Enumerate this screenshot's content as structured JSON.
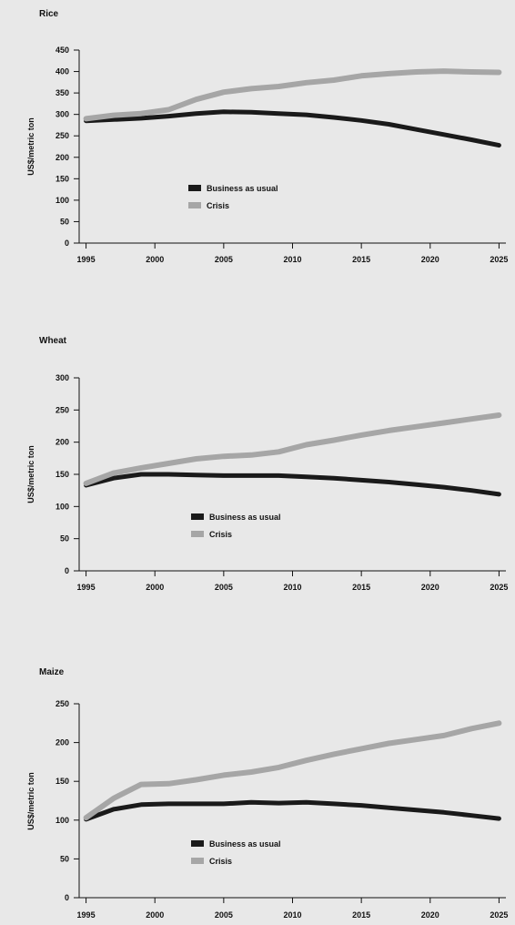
{
  "colors": {
    "background": "#e8e8e8",
    "business_as_usual": "#1a1a1a",
    "crisis": "#a6a6a6"
  },
  "chart_data": [
    {
      "type": "line",
      "title": "Rice",
      "ylabel": "US$/metric ton",
      "xlabel": "",
      "xlim": [
        1994.5,
        2025.5
      ],
      "ylim": [
        0,
        450
      ],
      "yticks": [
        0,
        50,
        100,
        150,
        200,
        250,
        300,
        350,
        400,
        450
      ],
      "xticks": [
        1995,
        2000,
        2005,
        2010,
        2015,
        2020,
        2025
      ],
      "legend_position": "lower-center",
      "x": [
        1995,
        1997,
        1999,
        2001,
        2003,
        2005,
        2007,
        2009,
        2011,
        2013,
        2015,
        2017,
        2019,
        2021,
        2023,
        2025
      ],
      "series": [
        {
          "name": "Business as usual",
          "values": [
            285,
            288,
            291,
            296,
            302,
            306,
            305,
            302,
            299,
            293,
            286,
            277,
            265,
            253,
            241,
            228
          ]
        },
        {
          "name": "Crisis",
          "values": [
            290,
            298,
            302,
            311,
            335,
            352,
            360,
            365,
            374,
            380,
            390,
            395,
            399,
            401,
            399,
            398
          ]
        }
      ]
    },
    {
      "type": "line",
      "title": "Wheat",
      "ylabel": "US$/metric ton",
      "xlabel": "",
      "xlim": [
        1994.5,
        2025.5
      ],
      "ylim": [
        0,
        300
      ],
      "yticks": [
        0,
        50,
        100,
        150,
        200,
        250,
        300
      ],
      "xticks": [
        1995,
        2000,
        2005,
        2010,
        2015,
        2020,
        2025
      ],
      "legend_position": "lower-center",
      "x": [
        1995,
        1997,
        1999,
        2001,
        2003,
        2005,
        2007,
        2009,
        2011,
        2013,
        2015,
        2017,
        2019,
        2021,
        2023,
        2025
      ],
      "series": [
        {
          "name": "Business as usual",
          "values": [
            133,
            144,
            150,
            150,
            149,
            148,
            148,
            148,
            146,
            144,
            141,
            138,
            134,
            130,
            125,
            119
          ]
        },
        {
          "name": "Crisis",
          "values": [
            136,
            152,
            160,
            167,
            174,
            178,
            180,
            185,
            196,
            203,
            211,
            218,
            224,
            230,
            236,
            242
          ]
        }
      ]
    },
    {
      "type": "line",
      "title": "Maize",
      "ylabel": "US$/metric ton",
      "xlabel": "",
      "xlim": [
        1994.5,
        2025.5
      ],
      "ylim": [
        0,
        250
      ],
      "yticks": [
        0,
        50,
        100,
        150,
        200,
        250
      ],
      "xticks": [
        1995,
        2000,
        2005,
        2010,
        2015,
        2020,
        2025
      ],
      "legend_position": "lower-center",
      "x": [
        1995,
        1997,
        1999,
        2001,
        2003,
        2005,
        2007,
        2009,
        2011,
        2013,
        2015,
        2017,
        2019,
        2021,
        2023,
        2025
      ],
      "series": [
        {
          "name": "Business as usual",
          "values": [
            101,
            114,
            120,
            121,
            121,
            121,
            123,
            122,
            123,
            121,
            119,
            116,
            113,
            110,
            106,
            102
          ]
        },
        {
          "name": "Crisis",
          "values": [
            103,
            128,
            146,
            147,
            152,
            158,
            162,
            168,
            177,
            185,
            192,
            199,
            204,
            209,
            218,
            225
          ]
        }
      ]
    }
  ]
}
